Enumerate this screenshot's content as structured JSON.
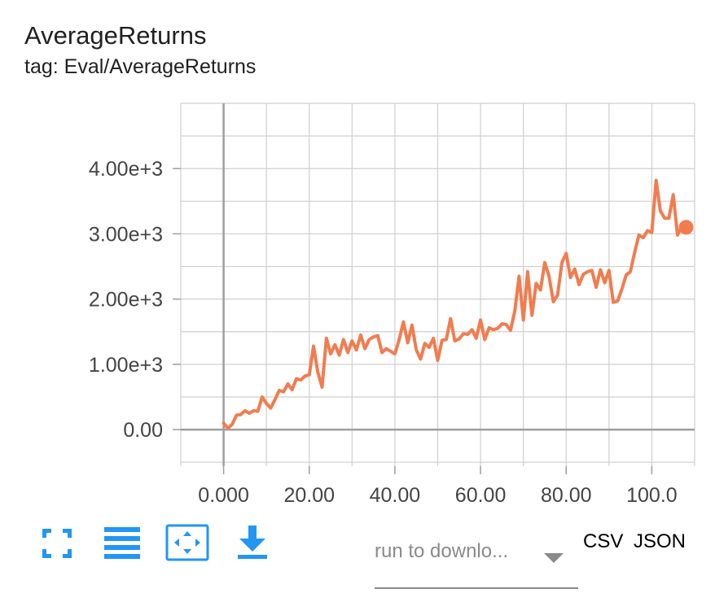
{
  "card": {
    "title": "AverageReturns",
    "subtitle": "tag: Eval/AverageReturns"
  },
  "colors": {
    "series": "#f17c4f",
    "grid": "#cfcfcf",
    "axis": "#9e9e9e",
    "tool_blue": "#2196f3"
  },
  "toolbar": {
    "icons": [
      "fullscreen-icon",
      "list-icon",
      "fit-domain-icon",
      "download-icon"
    ]
  },
  "download": {
    "run_placeholder": "run to downlo...",
    "csv_label": "CSV",
    "json_label": "JSON"
  },
  "chart_data": {
    "type": "line",
    "title": "",
    "xlabel": "",
    "ylabel": "",
    "xlim": [
      -10,
      110
    ],
    "ylim": [
      -560,
      5000
    ],
    "x_ticks": [
      0,
      20,
      40,
      60,
      80,
      100
    ],
    "x_tick_labels": [
      "0.000",
      "20.00",
      "40.00",
      "60.00",
      "80.00",
      "100.0"
    ],
    "y_ticks": [
      0,
      1000,
      2000,
      3000,
      4000
    ],
    "y_tick_labels": [
      "0.00",
      "1.00e+3",
      "2.00e+3",
      "3.00e+3",
      "4.00e+3"
    ],
    "grid": true,
    "series": [
      {
        "x": [
          0,
          1,
          2,
          3,
          4,
          5,
          6,
          7,
          8,
          9,
          10,
          11,
          12,
          13,
          14,
          15,
          16,
          17,
          18,
          19,
          20,
          21,
          22,
          23,
          24,
          25,
          26,
          27,
          28,
          29,
          30,
          31,
          32,
          33,
          34,
          35,
          36,
          37,
          38,
          39,
          40,
          41,
          42,
          43,
          44,
          45,
          46,
          47,
          48,
          49,
          50,
          51,
          52,
          53,
          54,
          55,
          56,
          57,
          58,
          59,
          60,
          61,
          62,
          63,
          64,
          65,
          66,
          67,
          68,
          69,
          70,
          71,
          72,
          73,
          74,
          75,
          76,
          77,
          78,
          79,
          80,
          81,
          82,
          83,
          84,
          85,
          86,
          87,
          88,
          89,
          90,
          91,
          92,
          93,
          94,
          95,
          96,
          97,
          98,
          99,
          100,
          101,
          102,
          103,
          104,
          105,
          106,
          107,
          108
        ],
        "y": [
          100,
          20,
          80,
          220,
          230,
          290,
          250,
          290,
          280,
          500,
          400,
          330,
          460,
          600,
          580,
          700,
          610,
          780,
          760,
          820,
          840,
          1280,
          880,
          650,
          1400,
          1160,
          1300,
          1140,
          1380,
          1180,
          1360,
          1220,
          1450,
          1240,
          1380,
          1420,
          1440,
          1180,
          1240,
          1200,
          1160,
          1380,
          1650,
          1330,
          1600,
          1220,
          1080,
          1320,
          1260,
          1400,
          1060,
          1370,
          1380,
          1700,
          1360,
          1390,
          1470,
          1460,
          1530,
          1400,
          1680,
          1380,
          1560,
          1530,
          1550,
          1620,
          1610,
          1520,
          1820,
          2350,
          1680,
          2420,
          1750,
          2240,
          2140,
          2560,
          2350,
          1960,
          2060,
          2560,
          2700,
          2330,
          2460,
          2220,
          2380,
          2420,
          2440,
          2180,
          2450,
          2250,
          2440,
          1950,
          1970,
          2150,
          2370,
          2420,
          2720,
          2980,
          2940,
          3050,
          3020,
          3820,
          3350,
          3240,
          3240,
          3600,
          2980,
          3120,
          3100
        ]
      }
    ]
  }
}
